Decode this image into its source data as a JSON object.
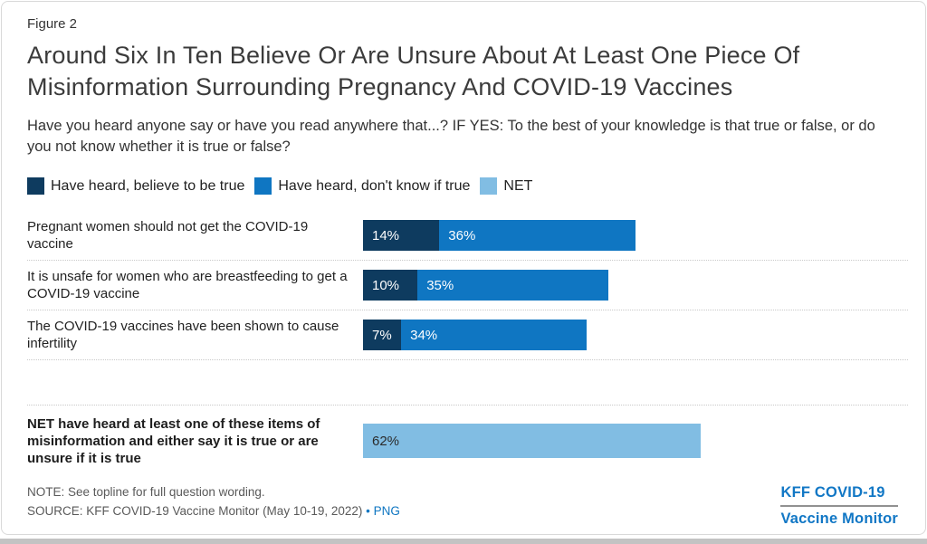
{
  "figure_label": "Figure 2",
  "title": "Around Six In Ten Believe Or Are Unsure About At Least One Piece Of Misinformation Surrounding Pregnancy And COVID-19 Vaccines",
  "subtitle": "Have you heard anyone say or have you read anywhere that...? IF YES: To the best of your knowledge is that true or false, or do you not know whether it is true or false?",
  "colors": {
    "dark_blue": "#0E3B5F",
    "medium_blue": "#0F76C2",
    "light_blue": "#81BDE3",
    "link_blue": "#0F76C2"
  },
  "legend": [
    {
      "label": "Have heard, believe to be true"
    },
    {
      "label": "Have heard, don't know if true"
    },
    {
      "label": "NET"
    }
  ],
  "chart_data": {
    "type": "bar",
    "orientation": "horizontal",
    "stacked": true,
    "xmax": 100,
    "grid": false,
    "legend_position": "top",
    "series_names": [
      "Have heard, believe to be true",
      "Have heard, don't know if true"
    ],
    "rows": [
      {
        "category": "Pregnant women should not get the COVID-19 vaccine",
        "segments": [
          {
            "series": "Have heard, believe to be true",
            "value": 14,
            "label": "14%"
          },
          {
            "series": "Have heard, don't know if true",
            "value": 36,
            "label": "36%"
          }
        ]
      },
      {
        "category": "It is unsafe for women who are breastfeeding to get a COVID-19 vaccine",
        "segments": [
          {
            "series": "Have heard, believe to be true",
            "value": 10,
            "label": "10%"
          },
          {
            "series": "Have heard, don't know if true",
            "value": 35,
            "label": "35%"
          }
        ]
      },
      {
        "category": "The COVID-19 vaccines have been shown to cause infertility",
        "segments": [
          {
            "series": "Have heard, believe to be true",
            "value": 7,
            "label": "7%"
          },
          {
            "series": "Have heard, don't know if true",
            "value": 34,
            "label": "34%"
          }
        ]
      }
    ],
    "net_row": {
      "category": "NET have heard at least one of these items of misinformation and either say it is true or are unsure if it is true",
      "series": "NET",
      "value": 62,
      "label": "62%"
    }
  },
  "footer": {
    "note": "NOTE: See topline for full question wording.",
    "source_text": "SOURCE: KFF COVID-19 Vaccine Monitor (May 10-19, 2022) ",
    "source_bullet": "• ",
    "png_link": "PNG",
    "logo_line1": "KFF COVID-19",
    "logo_line2": "Vaccine Monitor"
  }
}
